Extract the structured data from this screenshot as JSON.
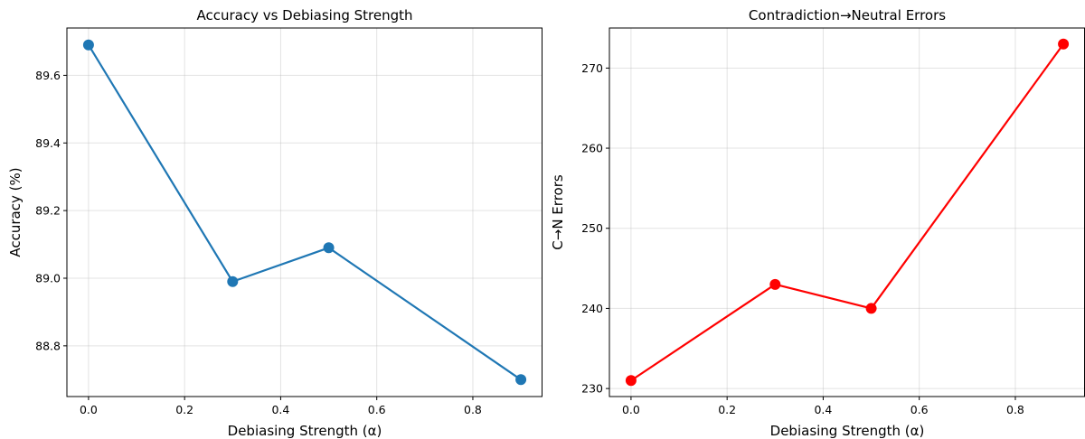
{
  "chart_data": [
    {
      "type": "line",
      "title": "Accuracy vs Debiasing Strength",
      "xlabel": "Debiasing Strength (α)",
      "ylabel": "Accuracy (%)",
      "x": [
        0.0,
        0.3,
        0.5,
        0.9
      ],
      "series": [
        {
          "values": [
            89.69,
            88.99,
            89.09,
            88.7
          ],
          "color": "#1f77b4"
        }
      ],
      "xlim": [
        -0.045,
        0.945
      ],
      "ylim": [
        88.65,
        89.74
      ],
      "xticks": [
        0.0,
        0.2,
        0.4,
        0.6,
        0.8
      ],
      "xtick_labels": [
        "0.0",
        "0.2",
        "0.4",
        "0.6",
        "0.8"
      ],
      "yticks": [
        88.8,
        89.0,
        89.2,
        89.4,
        89.6
      ],
      "ytick_labels": [
        "88.8",
        "89.0",
        "89.2",
        "89.4",
        "89.6"
      ],
      "grid": true,
      "marker": "circle"
    },
    {
      "type": "line",
      "title": "Contradiction→Neutral Errors",
      "xlabel": "Debiasing Strength (α)",
      "ylabel": "C→N Errors",
      "x": [
        0.0,
        0.3,
        0.5,
        0.9
      ],
      "series": [
        {
          "values": [
            231,
            243,
            240,
            273
          ],
          "color": "#ff0000"
        }
      ],
      "xlim": [
        -0.045,
        0.945
      ],
      "ylim": [
        229,
        275
      ],
      "xticks": [
        0.0,
        0.2,
        0.4,
        0.6,
        0.8
      ],
      "xtick_labels": [
        "0.0",
        "0.2",
        "0.4",
        "0.6",
        "0.8"
      ],
      "yticks": [
        230,
        240,
        250,
        260,
        270
      ],
      "ytick_labels": [
        "230",
        "240",
        "250",
        "260",
        "270"
      ],
      "grid": true,
      "marker": "circle"
    }
  ]
}
